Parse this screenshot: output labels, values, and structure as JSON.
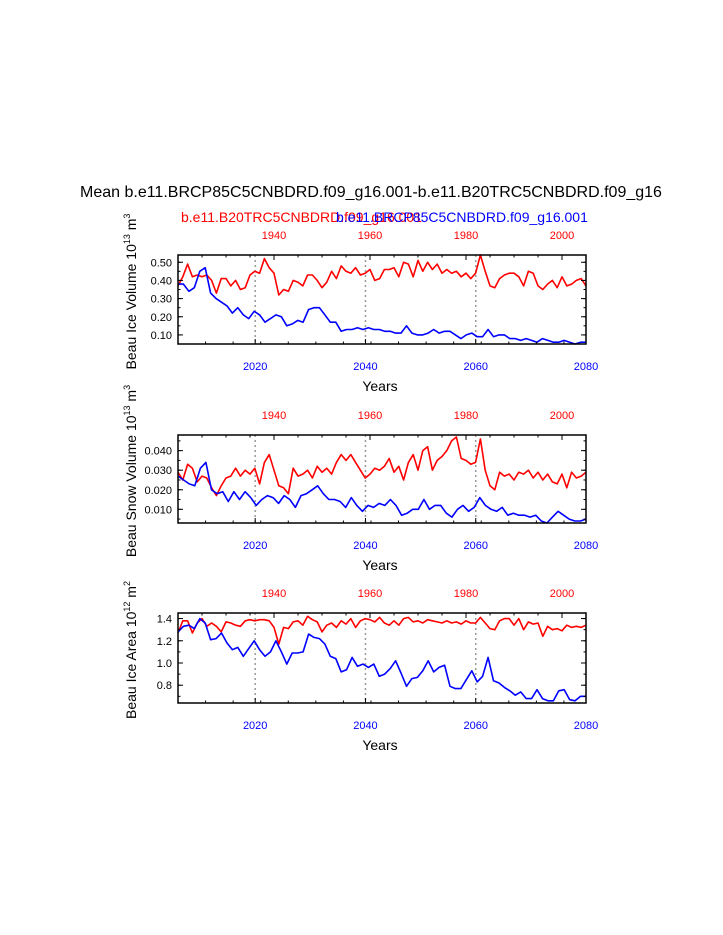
{
  "page": {
    "title": "Mean b.e11.BRCP85C5CNBDRD.f09_g16.001-b.e11.B20TRC5CNBDRD.f09_g16",
    "legend_red": "b.e11.B20TRC5CNBDRD.f09_g16.001",
    "legend_blue": "b.e11.BRCP85C5CNBDRD.f09_g16.001"
  },
  "colors": {
    "red": "#ff0000",
    "blue": "#0000ff",
    "grid": "#999999"
  },
  "chart_data": [
    {
      "type": "line",
      "name": "ice-volume",
      "ylabel": "Beau Ice Volume 10",
      "ylabel_sup": "13",
      "ylabel_unit": " m",
      "ylabel_unit_sup": "3",
      "xlabel": "Years",
      "ylim": [
        0.05,
        0.54
      ],
      "ytick_values": [
        0.1,
        0.2,
        0.3,
        0.4,
        0.5
      ],
      "ytick_labels": [
        "0.10",
        "0.20",
        "0.30",
        "0.40",
        "0.50"
      ],
      "bottom_axis": {
        "xlim": [
          2006,
          2080
        ],
        "ticks": [
          2020,
          2040,
          2060,
          2080
        ],
        "tick_labels": [
          "2020",
          "2040",
          "2060",
          "2080"
        ]
      },
      "top_axis": {
        "xlim": [
          1920,
          2005
        ],
        "ticks": [
          1940,
          1960,
          1980,
          2000
        ],
        "tick_labels": [
          "1940",
          "1960",
          "1980",
          "2000"
        ]
      },
      "series": [
        {
          "name": "b.e11.B20TRC5CNBDRD.f09_g16.001",
          "color": "red",
          "axis": "top",
          "values": [
            0.37,
            0.42,
            0.49,
            0.42,
            0.43,
            0.42,
            0.43,
            0.4,
            0.33,
            0.41,
            0.41,
            0.37,
            0.4,
            0.35,
            0.36,
            0.43,
            0.45,
            0.44,
            0.52,
            0.47,
            0.44,
            0.32,
            0.35,
            0.34,
            0.4,
            0.39,
            0.37,
            0.43,
            0.43,
            0.4,
            0.36,
            0.39,
            0.45,
            0.41,
            0.48,
            0.45,
            0.44,
            0.47,
            0.43,
            0.44,
            0.46,
            0.4,
            0.41,
            0.46,
            0.46,
            0.47,
            0.42,
            0.5,
            0.49,
            0.42,
            0.51,
            0.45,
            0.5,
            0.46,
            0.49,
            0.44,
            0.46,
            0.44,
            0.45,
            0.42,
            0.44,
            0.41,
            0.44,
            0.54,
            0.45,
            0.37,
            0.36,
            0.41,
            0.43,
            0.44,
            0.44,
            0.42,
            0.37,
            0.45,
            0.44,
            0.37,
            0.35,
            0.38,
            0.4,
            0.36,
            0.42,
            0.37,
            0.38,
            0.4,
            0.41,
            0.37
          ]
        },
        {
          "name": "b.e11.BRCP85C5CNBDRD.f09_g16.001",
          "color": "blue",
          "axis": "bottom",
          "values": [
            0.38,
            0.38,
            0.34,
            0.36,
            0.45,
            0.47,
            0.33,
            0.3,
            0.28,
            0.26,
            0.22,
            0.25,
            0.21,
            0.19,
            0.23,
            0.21,
            0.17,
            0.19,
            0.21,
            0.2,
            0.15,
            0.16,
            0.18,
            0.17,
            0.24,
            0.25,
            0.25,
            0.21,
            0.17,
            0.17,
            0.12,
            0.13,
            0.13,
            0.14,
            0.13,
            0.14,
            0.13,
            0.13,
            0.12,
            0.12,
            0.11,
            0.11,
            0.15,
            0.11,
            0.1,
            0.1,
            0.11,
            0.13,
            0.11,
            0.12,
            0.12,
            0.1,
            0.08,
            0.1,
            0.11,
            0.09,
            0.09,
            0.13,
            0.09,
            0.1,
            0.1,
            0.08,
            0.08,
            0.07,
            0.08,
            0.07,
            0.06,
            0.08,
            0.07,
            0.06,
            0.06,
            0.07,
            0.06,
            0.05,
            0.06,
            0.06
          ]
        }
      ]
    },
    {
      "type": "line",
      "name": "snow-volume",
      "ylabel": "Beau Snow Volume 10",
      "ylabel_sup": "13",
      "ylabel_unit": " m",
      "ylabel_unit_sup": "3",
      "xlabel": "Years",
      "ylim": [
        0.003,
        0.048
      ],
      "ytick_values": [
        0.01,
        0.02,
        0.03,
        0.04
      ],
      "ytick_labels": [
        "0.010",
        "0.020",
        "0.030",
        "0.040"
      ],
      "bottom_axis": {
        "xlim": [
          2006,
          2080
        ],
        "ticks": [
          2020,
          2040,
          2060,
          2080
        ],
        "tick_labels": [
          "2020",
          "2040",
          "2060",
          "2080"
        ]
      },
      "top_axis": {
        "xlim": [
          1920,
          2005
        ],
        "ticks": [
          1940,
          1960,
          1980,
          2000
        ],
        "tick_labels": [
          "1940",
          "1960",
          "1980",
          "2000"
        ]
      },
      "series": [
        {
          "name": "b.e11.B20TRC5CNBDRD.f09_g16.001",
          "color": "red",
          "axis": "top",
          "values": [
            0.029,
            0.025,
            0.033,
            0.031,
            0.024,
            0.027,
            0.026,
            0.021,
            0.017,
            0.022,
            0.026,
            0.027,
            0.031,
            0.027,
            0.03,
            0.028,
            0.031,
            0.023,
            0.034,
            0.038,
            0.03,
            0.022,
            0.021,
            0.018,
            0.031,
            0.027,
            0.028,
            0.03,
            0.026,
            0.032,
            0.029,
            0.031,
            0.028,
            0.034,
            0.038,
            0.035,
            0.038,
            0.034,
            0.03,
            0.026,
            0.028,
            0.031,
            0.03,
            0.032,
            0.036,
            0.029,
            0.032,
            0.025,
            0.034,
            0.038,
            0.03,
            0.04,
            0.042,
            0.03,
            0.035,
            0.037,
            0.04,
            0.045,
            0.047,
            0.036,
            0.035,
            0.033,
            0.034,
            0.046,
            0.03,
            0.022,
            0.02,
            0.029,
            0.027,
            0.028,
            0.025,
            0.029,
            0.028,
            0.03,
            0.026,
            0.029,
            0.025,
            0.028,
            0.024,
            0.023,
            0.028,
            0.021,
            0.029,
            0.026,
            0.027,
            0.029
          ]
        },
        {
          "name": "b.e11.BRCP85C5CNBDRD.f09_g16.001",
          "color": "blue",
          "axis": "bottom",
          "values": [
            0.027,
            0.025,
            0.023,
            0.022,
            0.031,
            0.034,
            0.02,
            0.018,
            0.019,
            0.014,
            0.019,
            0.015,
            0.019,
            0.016,
            0.012,
            0.015,
            0.017,
            0.016,
            0.013,
            0.017,
            0.015,
            0.011,
            0.017,
            0.018,
            0.02,
            0.022,
            0.018,
            0.015,
            0.015,
            0.014,
            0.011,
            0.016,
            0.012,
            0.009,
            0.012,
            0.011,
            0.013,
            0.012,
            0.015,
            0.012,
            0.007,
            0.008,
            0.01,
            0.01,
            0.015,
            0.01,
            0.012,
            0.012,
            0.008,
            0.006,
            0.01,
            0.012,
            0.009,
            0.011,
            0.016,
            0.012,
            0.01,
            0.009,
            0.011,
            0.007,
            0.008,
            0.007,
            0.007,
            0.006,
            0.007,
            0.004,
            0.003,
            0.006,
            0.009,
            0.007,
            0.005,
            0.004,
            0.004,
            0.005
          ]
        }
      ]
    },
    {
      "type": "line",
      "name": "ice-area",
      "ylabel": "Beau Ice Area 10",
      "ylabel_sup": "12",
      "ylabel_unit": " m",
      "ylabel_unit_sup": "2",
      "xlabel": "Years",
      "ylim": [
        0.64,
        1.45
      ],
      "ytick_values": [
        0.8,
        1.0,
        1.2,
        1.4
      ],
      "ytick_labels": [
        "0.8",
        "1.0",
        "1.2",
        "1.4"
      ],
      "bottom_axis": {
        "xlim": [
          2006,
          2080
        ],
        "ticks": [
          2020,
          2040,
          2060,
          2080
        ],
        "tick_labels": [
          "2020",
          "2040",
          "2060",
          "2080"
        ]
      },
      "top_axis": {
        "xlim": [
          1920,
          2005
        ],
        "ticks": [
          1940,
          1960,
          1980,
          2000
        ],
        "tick_labels": [
          "1940",
          "1960",
          "1980",
          "2000"
        ]
      },
      "series": [
        {
          "name": "b.e11.B20TRC5CNBDRD.f09_g16.001",
          "color": "red",
          "axis": "top",
          "values": [
            1.27,
            1.38,
            1.38,
            1.27,
            1.36,
            1.4,
            1.33,
            1.36,
            1.33,
            1.28,
            1.37,
            1.36,
            1.34,
            1.33,
            1.38,
            1.39,
            1.38,
            1.39,
            1.39,
            1.38,
            1.32,
            1.17,
            1.32,
            1.31,
            1.37,
            1.38,
            1.34,
            1.42,
            1.39,
            1.37,
            1.28,
            1.34,
            1.36,
            1.32,
            1.38,
            1.35,
            1.4,
            1.32,
            1.38,
            1.4,
            1.39,
            1.37,
            1.41,
            1.36,
            1.34,
            1.38,
            1.34,
            1.4,
            1.41,
            1.37,
            1.38,
            1.36,
            1.39,
            1.38,
            1.37,
            1.36,
            1.38,
            1.36,
            1.37,
            1.35,
            1.38,
            1.36,
            1.36,
            1.41,
            1.36,
            1.31,
            1.3,
            1.38,
            1.4,
            1.4,
            1.34,
            1.4,
            1.3,
            1.37,
            1.35,
            1.36,
            1.24,
            1.33,
            1.3,
            1.31,
            1.29,
            1.34,
            1.32,
            1.33,
            1.32,
            1.34
          ]
        },
        {
          "name": "b.e11.BRCP85C5CNBDRD.f09_g16.001",
          "color": "blue",
          "axis": "bottom",
          "values": [
            1.28,
            1.33,
            1.34,
            1.31,
            1.4,
            1.36,
            1.21,
            1.22,
            1.27,
            1.18,
            1.12,
            1.14,
            1.06,
            1.13,
            1.2,
            1.12,
            1.06,
            1.1,
            1.2,
            1.1,
            0.99,
            1.09,
            1.09,
            1.1,
            1.26,
            1.23,
            1.22,
            1.17,
            1.06,
            1.04,
            0.92,
            0.94,
            1.05,
            0.97,
            0.99,
            0.96,
            0.99,
            0.88,
            0.9,
            0.95,
            1.02,
            0.91,
            0.79,
            0.86,
            0.87,
            0.93,
            1.02,
            0.92,
            0.96,
            0.98,
            0.79,
            0.77,
            0.77,
            0.85,
            0.93,
            0.83,
            0.88,
            1.05,
            0.84,
            0.82,
            0.78,
            0.75,
            0.71,
            0.74,
            0.68,
            0.68,
            0.76,
            0.68,
            0.66,
            0.66,
            0.75,
            0.76,
            0.67,
            0.66,
            0.7,
            0.7
          ]
        }
      ]
    }
  ]
}
